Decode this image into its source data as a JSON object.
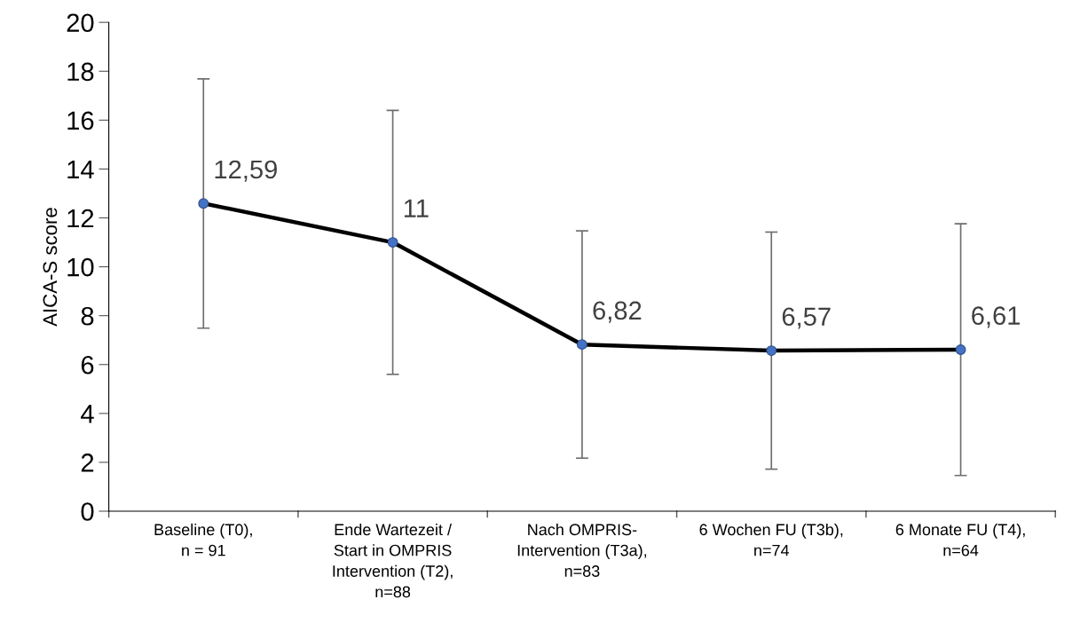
{
  "chart_data": {
    "type": "line",
    "ylabel": "AICA-S score",
    "categories": [
      "Baseline (T0),\nn = 91",
      "Ende Wartezeit /\nStart in OMPRIS\nIntervention (T2),\nn=88",
      "Nach OMPRIS-\nIntervention (T3a),\nn=83",
      "6 Wochen FU (T3b),\nn=74",
      "6 Monate FU (T4),\nn=64"
    ],
    "series": [
      {
        "color": "#000000",
        "colors": [
          "#4472c4",
          "#4472c4",
          "#4472c4",
          "#4472c4",
          "#4472c4"
        ],
        "values": [
          12.59,
          11,
          6.82,
          6.57,
          6.61
        ],
        "errors": [
          5.1,
          5.4,
          4.65,
          4.85,
          5.15
        ],
        "value_labels": [
          "12,59",
          "11",
          "6,82",
          "6,57",
          "6,61"
        ]
      }
    ],
    "ylim": [
      0,
      20
    ],
    "yticks": [
      0,
      2,
      4,
      6,
      8,
      10,
      12,
      14,
      16,
      18,
      20
    ],
    "marker": "circle"
  }
}
